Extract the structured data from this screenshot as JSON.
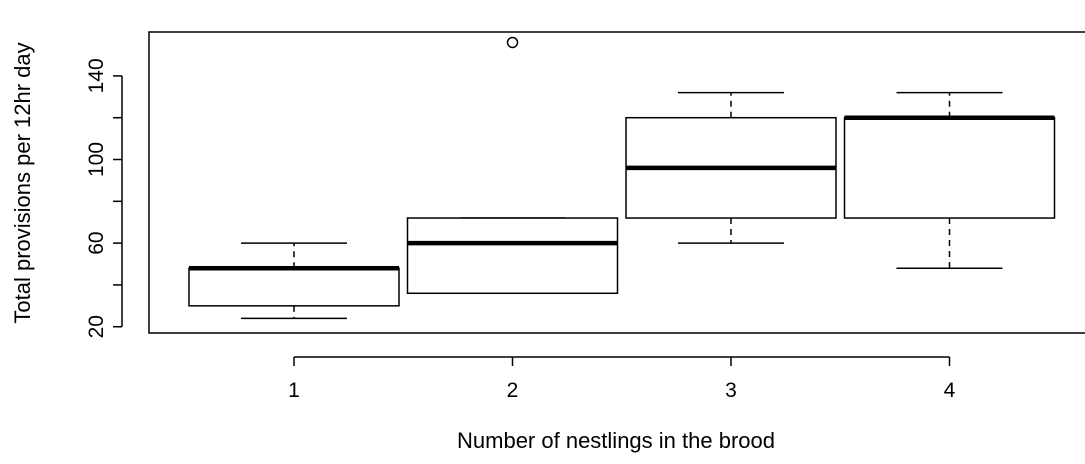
{
  "chart_data": {
    "type": "boxplot",
    "title": "",
    "xlabel": "Number of nestlings in the brood",
    "ylabel": "Total provisions per 12hr day",
    "categories": [
      "1",
      "2",
      "3",
      "4"
    ],
    "boxes": [
      {
        "category": "1",
        "whisker_low": 24,
        "q1": 30,
        "median": 48,
        "q3": 48,
        "whisker_high": 60,
        "outliers": []
      },
      {
        "category": "2",
        "whisker_low": 36,
        "q1": 36,
        "median": 60,
        "q3": 72,
        "whisker_high": 72,
        "outliers": [
          156
        ]
      },
      {
        "category": "3",
        "whisker_low": 60,
        "q1": 72,
        "median": 96,
        "q3": 120,
        "whisker_high": 132,
        "outliers": []
      },
      {
        "category": "4",
        "whisker_low": 48,
        "q1": 72,
        "median": 120,
        "q3": 120,
        "whisker_high": 132,
        "outliers": []
      }
    ],
    "yticks": [
      20,
      60,
      100,
      140
    ],
    "ylim": [
      17,
      161
    ],
    "grid": false,
    "legend": "none"
  }
}
